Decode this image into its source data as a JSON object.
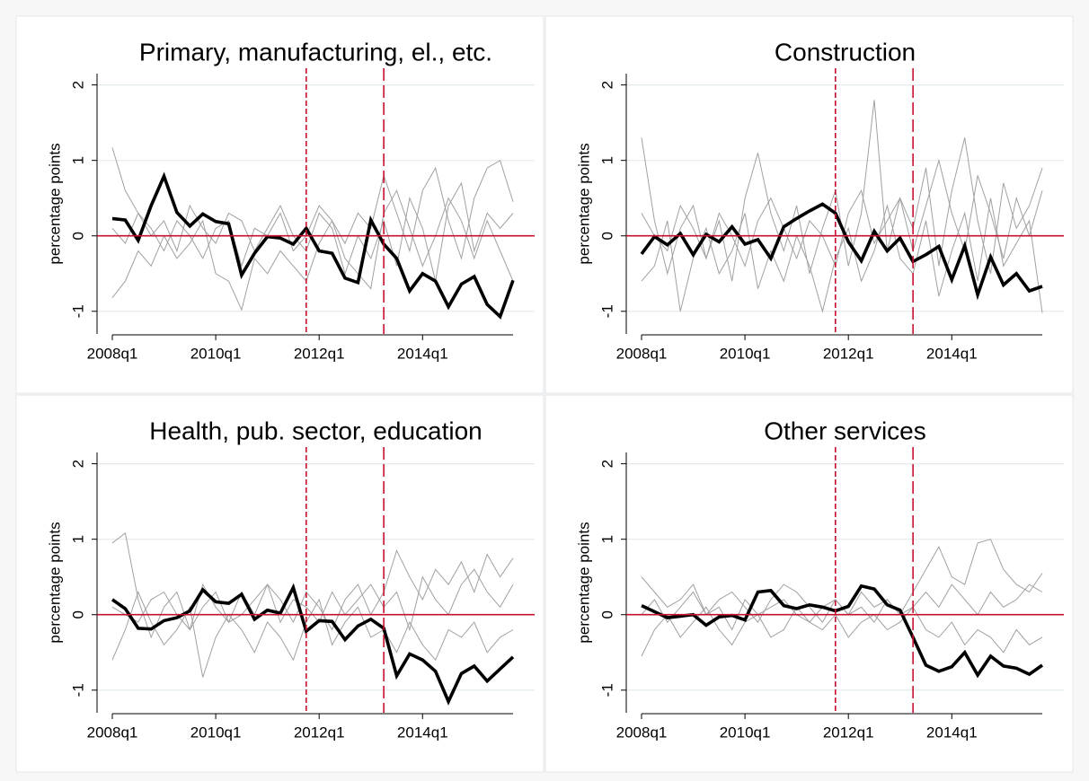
{
  "chart_data": [
    {
      "type": "line",
      "title": "Primary, manufacturing, el., etc.",
      "y_label": "percentage points",
      "categories": [
        "2008q1",
        null,
        null,
        null,
        null,
        null,
        null,
        null,
        "2010q1",
        null,
        null,
        null,
        null,
        null,
        null,
        null,
        "2012q1",
        null,
        null,
        null,
        null,
        null,
        null,
        null,
        "2014q1",
        null,
        null,
        null,
        null,
        null,
        null,
        null
      ],
      "ylim": [
        -1.3,
        2.15
      ],
      "yticks": [
        -1,
        0,
        1,
        2
      ],
      "grid": true,
      "hline": 0,
      "vlines": [
        15,
        21
      ],
      "ref_color": "#c8102e",
      "series": [
        {
          "color": "#a0a0a0",
          "values": [
            1.17,
            0.6,
            0.3,
            0.1,
            -0.2,
            0.2,
            0.0,
            -0.3,
            0.1,
            0.2,
            -0.4,
            0.1,
            0.0,
            0.3,
            -0.2,
            0.0,
            0.4,
            0.2,
            -0.1,
            0.3,
            0.1,
            0.8,
            0.3,
            -0.2,
            0.6,
            0.9,
            0.2,
            -0.3,
            0.5,
            0.9,
            1.0,
            0.45
          ]
        },
        {
          "color": "#a0a0a0",
          "values": [
            -0.82,
            -0.6,
            -0.2,
            -0.4,
            0.0,
            -0.3,
            -0.1,
            0.2,
            -0.5,
            -0.6,
            -0.98,
            -0.3,
            -0.5,
            -0.2,
            -0.4,
            -0.6,
            -0.1,
            0.2,
            -0.3,
            -0.5,
            -0.7,
            0.3,
            0.6,
            0.1,
            -0.4,
            0.0,
            0.5,
            0.2,
            -0.3,
            0.2,
            -0.2,
            -0.6
          ]
        },
        {
          "color": "#a0a0a0",
          "values": [
            0.1,
            -0.1,
            0.3,
            0.0,
            0.2,
            -0.2,
            0.4,
            0.1,
            -0.1,
            0.3,
            0.2,
            -0.2,
            0.1,
            0.4,
            0.0,
            -0.2,
            0.3,
            0.1,
            -0.5,
            0.0,
            -0.3,
            0.2,
            -0.4,
            0.5,
            0.1,
            -0.6,
            0.4,
            0.7,
            -0.2,
            0.3,
            0.1,
            0.3
          ]
        },
        {
          "color": "#000000",
          "values": [
            0.23,
            0.21,
            -0.06,
            0.4,
            0.79,
            0.31,
            0.13,
            0.29,
            0.19,
            0.16,
            -0.52,
            -0.23,
            -0.01,
            -0.03,
            -0.11,
            0.1,
            -0.2,
            -0.23,
            -0.56,
            -0.62,
            0.21,
            -0.11,
            -0.3,
            -0.73,
            -0.5,
            -0.6,
            -0.94,
            -0.64,
            -0.54,
            -0.91,
            -1.07,
            -0.59
          ]
        }
      ]
    },
    {
      "type": "line",
      "title": "Construction",
      "y_label": "percentage points",
      "categories": [
        "2008q1",
        null,
        null,
        null,
        null,
        null,
        null,
        null,
        "2010q1",
        null,
        null,
        null,
        null,
        null,
        null,
        null,
        "2012q1",
        null,
        null,
        null,
        null,
        null,
        null,
        null,
        "2014q1",
        null,
        null,
        null,
        null,
        null,
        null,
        null
      ],
      "ylim": [
        -1.3,
        2.15
      ],
      "yticks": [
        -1,
        0,
        1,
        2
      ],
      "grid": true,
      "hline": 0,
      "vlines": [
        15,
        21
      ],
      "ref_color": "#c8102e",
      "series": [
        {
          "color": "#a0a0a0",
          "values": [
            1.3,
            0.2,
            -0.5,
            0.1,
            0.4,
            -0.3,
            0.2,
            -0.6,
            0.5,
            1.1,
            0.3,
            -0.2,
            0.4,
            -0.5,
            0.1,
            0.6,
            -0.4,
            0.3,
            1.8,
            -0.2,
            0.5,
            0.1,
            0.9,
            -0.4,
            0.6,
            1.3,
            0.2,
            -0.5,
            0.7,
            0.1,
            0.4,
            0.9
          ]
        },
        {
          "color": "#a0a0a0",
          "values": [
            -0.6,
            -0.4,
            0.2,
            -1.0,
            -0.3,
            0.1,
            -0.5,
            -0.2,
            0.3,
            -0.7,
            -0.2,
            -0.6,
            0.0,
            -0.4,
            -1.0,
            -0.3,
            0.1,
            -0.6,
            -0.2,
            0.4,
            -0.3,
            -0.5,
            0.2,
            -0.8,
            -0.2,
            0.3,
            -0.6,
            0.5,
            -0.4,
            -0.1,
            0.2,
            -1.02
          ]
        },
        {
          "color": "#a0a0a0",
          "values": [
            0.3,
            0.0,
            -0.2,
            0.4,
            0.1,
            -0.3,
            0.3,
            0.0,
            -0.4,
            0.2,
            0.5,
            0.1,
            -0.3,
            0.2,
            0.0,
            -0.4,
            0.3,
            0.6,
            -0.1,
            0.2,
            0.5,
            -0.2,
            0.4,
            1.0,
            0.3,
            -0.2,
            0.8,
            0.3,
            -0.3,
            0.5,
            0.0,
            0.6
          ]
        },
        {
          "color": "#000000",
          "values": [
            -0.24,
            -0.01,
            -0.12,
            0.03,
            -0.25,
            0.02,
            -0.08,
            0.12,
            -0.11,
            -0.05,
            -0.3,
            0.12,
            0.23,
            0.33,
            0.42,
            0.3,
            -0.08,
            -0.33,
            0.06,
            -0.2,
            -0.03,
            -0.34,
            -0.25,
            -0.14,
            -0.58,
            -0.13,
            -0.78,
            -0.28,
            -0.65,
            -0.5,
            -0.73,
            -0.67
          ]
        }
      ]
    },
    {
      "type": "line",
      "title": "Health, pub. sector, education",
      "y_label": "percentage points",
      "categories": [
        "2008q1",
        null,
        null,
        null,
        null,
        null,
        null,
        null,
        "2010q1",
        null,
        null,
        null,
        null,
        null,
        null,
        null,
        "2012q1",
        null,
        null,
        null,
        null,
        null,
        null,
        null,
        "2014q1",
        null,
        null,
        null,
        null,
        null,
        null,
        null
      ],
      "ylim": [
        -1.3,
        2.15
      ],
      "yticks": [
        -1,
        0,
        1,
        2
      ],
      "grid": true,
      "hline": 0,
      "vlines": [
        15,
        21
      ],
      "ref_color": "#c8102e",
      "series": [
        {
          "color": "#a0a0a0",
          "values": [
            0.95,
            1.08,
            0.2,
            -0.3,
            0.1,
            0.3,
            -0.2,
            0.4,
            0.1,
            -0.1,
            0.3,
            0.0,
            0.4,
            0.2,
            -0.1,
            0.3,
            0.1,
            -0.2,
            0.2,
            0.4,
            0.0,
            0.3,
            0.85,
            0.5,
            0.2,
            0.6,
            0.4,
            0.7,
            0.3,
            0.8,
            0.5,
            0.75
          ]
        },
        {
          "color": "#a0a0a0",
          "values": [
            -0.6,
            -0.2,
            0.3,
            -0.1,
            -0.4,
            -0.2,
            0.1,
            -0.83,
            -0.3,
            0.0,
            -0.2,
            -0.5,
            -0.1,
            -0.3,
            -0.6,
            -0.1,
            0.2,
            -0.4,
            -0.1,
            0.1,
            -0.3,
            -0.2,
            -0.5,
            -0.1,
            -0.4,
            -0.6,
            -0.2,
            -0.3,
            -0.1,
            -0.5,
            -0.3,
            -0.2
          ]
        },
        {
          "color": "#a0a0a0",
          "values": [
            0.1,
            0.0,
            -0.1,
            0.2,
            0.3,
            0.0,
            -0.2,
            0.1,
            0.3,
            -0.1,
            0.0,
            0.2,
            0.4,
            -0.1,
            0.2,
            0.1,
            -0.1,
            0.3,
            0.0,
            0.2,
            0.4,
            0.1,
            0.3,
            -0.2,
            0.5,
            0.2,
            0.0,
            0.4,
            0.6,
            0.3,
            0.1,
            0.4
          ]
        },
        {
          "color": "#000000",
          "values": [
            0.2,
            0.08,
            -0.18,
            -0.19,
            -0.08,
            -0.04,
            0.05,
            0.33,
            0.17,
            0.15,
            0.27,
            -0.06,
            0.06,
            0.02,
            0.36,
            -0.22,
            -0.08,
            -0.09,
            -0.33,
            -0.15,
            -0.06,
            -0.18,
            -0.81,
            -0.52,
            -0.6,
            -0.75,
            -1.15,
            -0.78,
            -0.68,
            -0.88,
            -0.72,
            -0.56
          ]
        }
      ]
    },
    {
      "type": "line",
      "title": "Other services",
      "y_label": "percentage points",
      "categories": [
        "2008q1",
        null,
        null,
        null,
        null,
        null,
        null,
        null,
        "2010q1",
        null,
        null,
        null,
        null,
        null,
        null,
        null,
        "2012q1",
        null,
        null,
        null,
        null,
        null,
        null,
        null,
        "2014q1",
        null,
        null,
        null,
        null,
        null,
        null,
        null
      ],
      "ylim": [
        -1.3,
        2.15
      ],
      "yticks": [
        -1,
        0,
        1,
        2
      ],
      "grid": true,
      "hline": 0,
      "vlines": [
        15,
        21
      ],
      "ref_color": "#c8102e",
      "series": [
        {
          "color": "#a0a0a0",
          "values": [
            0.5,
            0.3,
            0.1,
            0.2,
            0.4,
            0.0,
            0.2,
            0.3,
            0.1,
            -0.1,
            0.2,
            0.4,
            0.3,
            0.1,
            -0.1,
            0.2,
            0.0,
            0.3,
            0.1,
            0.2,
            0.0,
            0.3,
            0.6,
            0.9,
            0.5,
            0.4,
            0.95,
            1.0,
            0.6,
            0.4,
            0.3,
            0.55
          ]
        },
        {
          "color": "#a0a0a0",
          "values": [
            -0.55,
            -0.2,
            0.0,
            -0.3,
            -0.1,
            0.1,
            -0.2,
            -0.4,
            -0.1,
            0.0,
            -0.3,
            -0.2,
            0.1,
            -0.1,
            -0.2,
            0.0,
            -0.3,
            -0.1,
            0.0,
            -0.2,
            -0.1,
            0.1,
            -0.2,
            -0.3,
            -0.1,
            -0.4,
            -0.2,
            -0.3,
            -0.5,
            -0.2,
            -0.4,
            -0.3
          ]
        },
        {
          "color": "#a0a0a0",
          "values": [
            0.0,
            0.2,
            -0.1,
            0.1,
            0.3,
            0.0,
            0.1,
            -0.2,
            0.2,
            0.0,
            0.1,
            0.2,
            0.0,
            -0.1,
            0.1,
            0.2,
            0.0,
            0.1,
            -0.1,
            0.2,
            0.0,
            0.1,
            0.3,
            0.1,
            0.4,
            0.2,
            0.0,
            0.3,
            0.1,
            0.2,
            0.4,
            0.3
          ]
        },
        {
          "color": "#000000",
          "values": [
            0.12,
            0.04,
            -0.04,
            -0.02,
            0.0,
            -0.14,
            -0.03,
            -0.01,
            -0.07,
            0.3,
            0.32,
            0.12,
            0.08,
            0.13,
            0.1,
            0.05,
            0.11,
            0.38,
            0.34,
            0.13,
            0.06,
            -0.3,
            -0.67,
            -0.75,
            -0.69,
            -0.5,
            -0.8,
            -0.55,
            -0.68,
            -0.71,
            -0.79,
            -0.67
          ]
        }
      ]
    }
  ]
}
